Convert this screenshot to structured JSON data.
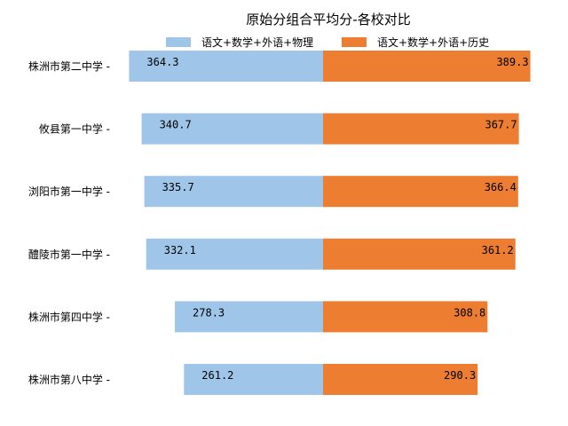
{
  "chart_data": {
    "type": "bar",
    "orientation": "diverging-horizontal",
    "title": "原始分组合平均分-各校对比",
    "categories": [
      "株洲市第二中学",
      "攸县第一中学",
      "浏阳市第一中学",
      "醴陵市第一中学",
      "株洲市第四中学",
      "株洲市第八中学"
    ],
    "series": [
      {
        "name": "语文+数学+外语+物理",
        "color": "#9fc5e8",
        "direction": "left",
        "values": [
          364.3,
          340.7,
          335.7,
          332.1,
          278.3,
          261.2
        ]
      },
      {
        "name": "语文+数学+外语+历史",
        "color": "#ed7d31",
        "direction": "right",
        "values": [
          389.3,
          367.7,
          366.4,
          361.2,
          308.8,
          290.3
        ]
      }
    ],
    "grid": false,
    "legend_position": "top-center",
    "axes_visible": false
  }
}
